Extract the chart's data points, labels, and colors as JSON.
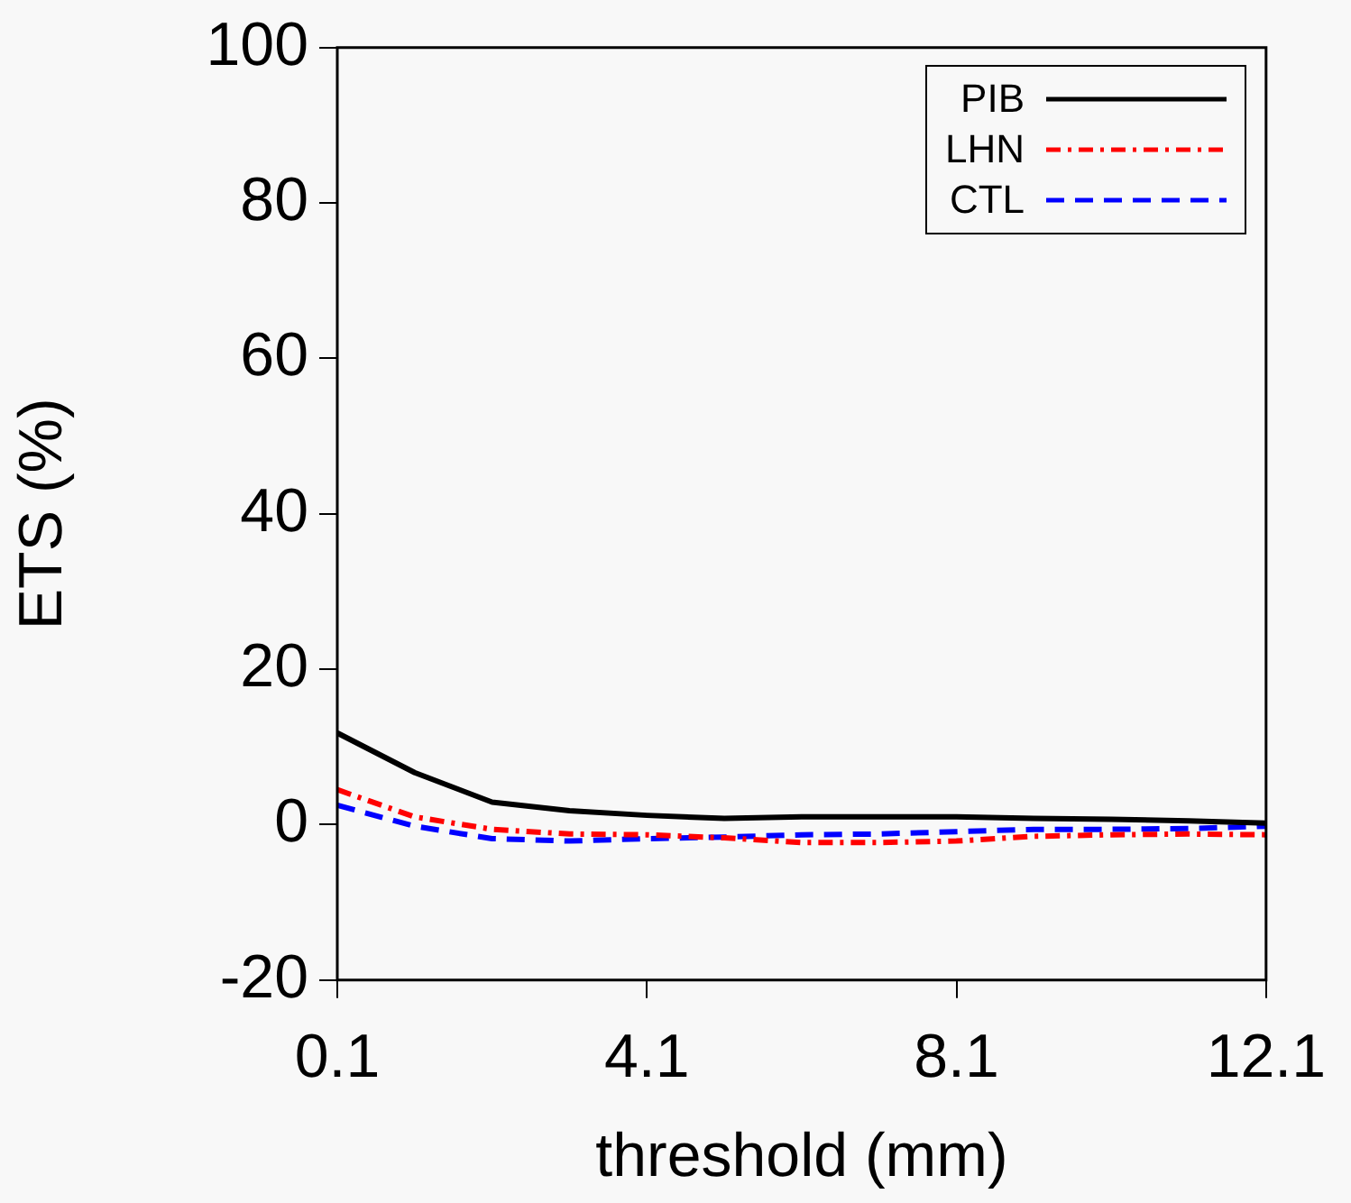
{
  "chart_data": {
    "type": "line",
    "xlabel": "threshold (mm)",
    "ylabel": "ETS (%)",
    "x": [
      0.1,
      1.1,
      2.1,
      3.1,
      4.1,
      5.1,
      6.1,
      7.1,
      8.1,
      9.1,
      10.1,
      11.1,
      12.1
    ],
    "series": [
      {
        "name": "PIB",
        "color": "#000000",
        "line_style": "solid",
        "values": [
          11.8,
          6.7,
          2.9,
          1.8,
          1.2,
          0.8,
          1.0,
          1.0,
          1.0,
          0.8,
          0.7,
          0.5,
          0.2
        ]
      },
      {
        "name": "LHN",
        "color": "#ff0000",
        "line_style": "dashdot",
        "values": [
          4.5,
          1.0,
          -0.6,
          -1.2,
          -1.3,
          -1.7,
          -2.3,
          -2.3,
          -2.1,
          -1.5,
          -1.3,
          -1.2,
          -1.3
        ]
      },
      {
        "name": "CTL",
        "color": "#0000ff",
        "line_style": "dashed",
        "values": [
          2.5,
          -0.2,
          -1.8,
          -2.1,
          -1.8,
          -1.6,
          -1.3,
          -1.2,
          -0.9,
          -0.6,
          -0.6,
          -0.5,
          -0.2
        ]
      }
    ],
    "xlim": [
      0.1,
      12.1
    ],
    "xticks": [
      0.1,
      4.1,
      8.1,
      12.1
    ],
    "ylim": [
      -20,
      100
    ],
    "yticks": [
      -20,
      0,
      20,
      40,
      60,
      80,
      100
    ],
    "grid": false,
    "legend": "top right",
    "marker": "none"
  }
}
